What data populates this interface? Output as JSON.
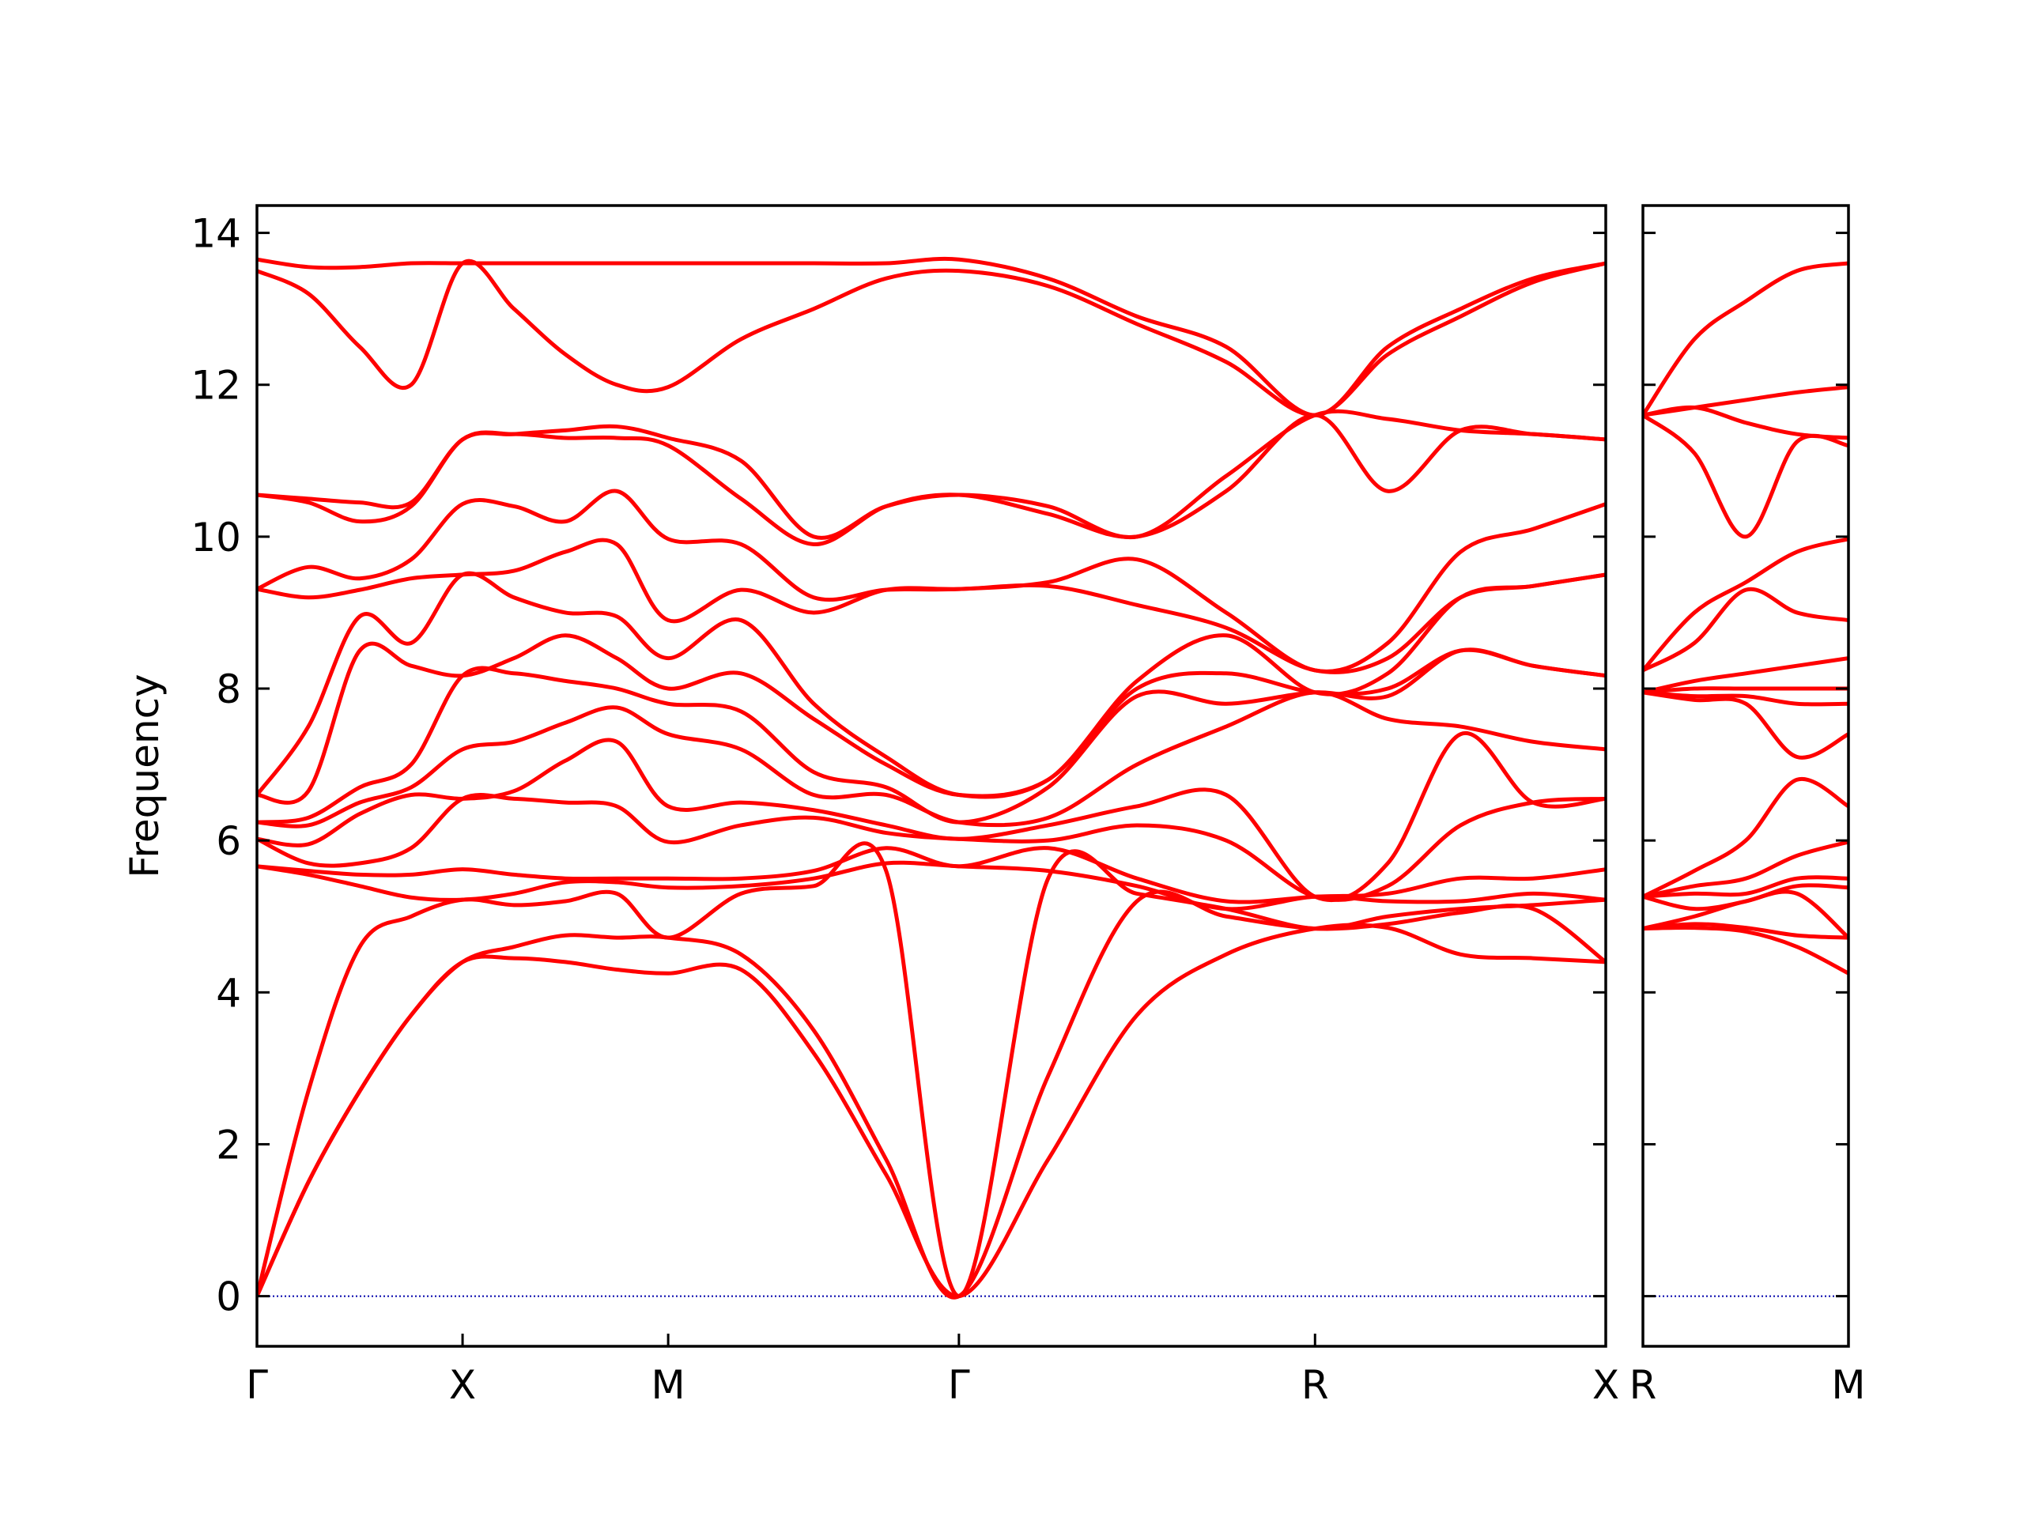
{
  "chart_data": [
    {
      "type": "line",
      "ylabel": "Frequency",
      "color": "#ff0000",
      "xlim": [
        0,
        3.28
      ],
      "ylim": [
        -0.66,
        14.36
      ],
      "xticks": [
        {
          "value": 0,
          "label": "Γ"
        },
        {
          "value": 0.5,
          "label": "X"
        },
        {
          "value": 1.0,
          "label": "M"
        },
        {
          "value": 1.707,
          "label": "Γ"
        },
        {
          "value": 2.573,
          "label": "R"
        },
        {
          "value": 3.28,
          "label": "X"
        }
      ],
      "yticks": [
        0,
        2,
        4,
        6,
        8,
        10,
        12,
        14
      ],
      "ytick_labels": true,
      "zero_line": {
        "y": 0,
        "color": "#0000aa"
      },
      "x": [
        0,
        0.125,
        0.25,
        0.375,
        0.5,
        0.625,
        0.75,
        0.875,
        1.0,
        1.177,
        1.354,
        1.53,
        1.707,
        1.924,
        2.14,
        2.357,
        2.573,
        2.75,
        2.927,
        3.103,
        3.28
      ],
      "series": [
        {
          "values": [
            0,
            1.5,
            2.7,
            3.7,
            4.4,
            4.45,
            4.4,
            4.3,
            4.25,
            4.3,
            3.2,
            1.6,
            0,
            1.8,
            3.7,
            4.5,
            4.84,
            4.85,
            4.5,
            4.45,
            4.4
          ]
        },
        {
          "values": [
            0,
            1.5,
            2.7,
            3.7,
            4.4,
            4.6,
            4.75,
            4.72,
            4.72,
            4.5,
            3.5,
            1.8,
            0,
            2.9,
            5.2,
            5.0,
            4.84,
            4.9,
            5.05,
            5.1,
            4.4
          ]
        },
        {
          "values": [
            0,
            2.7,
            4.6,
            5.0,
            5.22,
            5.15,
            5.2,
            5.3,
            4.72,
            5.3,
            5.4,
            5.6,
            0,
            5.5,
            5.3,
            5.1,
            4.84,
            5.0,
            5.1,
            5.15,
            5.22
          ]
        },
        {
          "values": [
            5.66,
            5.55,
            5.4,
            5.25,
            5.22,
            5.3,
            5.45,
            5.45,
            5.38,
            5.4,
            5.5,
            5.7,
            5.66,
            5.6,
            5.4,
            5.1,
            5.26,
            5.2,
            5.2,
            5.3,
            5.22
          ]
        },
        {
          "values": [
            5.66,
            5.6,
            5.55,
            5.55,
            5.62,
            5.55,
            5.5,
            5.5,
            5.5,
            5.5,
            5.6,
            5.9,
            5.66,
            5.9,
            5.5,
            5.2,
            5.26,
            5.3,
            5.5,
            5.5,
            5.62
          ]
        },
        {
          "values": [
            6.02,
            5.7,
            5.7,
            5.9,
            6.55,
            6.55,
            6.5,
            6.45,
            5.98,
            6.2,
            6.3,
            6.1,
            6.02,
            6.0,
            6.2,
            6.0,
            5.26,
            5.4,
            6.2,
            6.5,
            6.55
          ]
        },
        {
          "values": [
            6.02,
            5.95,
            6.35,
            6.6,
            6.55,
            6.65,
            7.05,
            7.3,
            6.45,
            6.5,
            6.4,
            6.2,
            6.02,
            6.2,
            6.45,
            6.6,
            5.26,
            5.7,
            7.4,
            6.5,
            6.55
          ]
        },
        {
          "values": [
            6.24,
            6.2,
            6.5,
            6.7,
            7.2,
            7.3,
            7.55,
            7.75,
            7.4,
            7.2,
            6.6,
            6.6,
            6.24,
            6.3,
            7.0,
            7.5,
            7.95,
            7.6,
            7.5,
            7.3,
            7.2
          ]
        },
        {
          "values": [
            6.24,
            6.3,
            6.7,
            7.0,
            8.17,
            8.2,
            8.1,
            8.0,
            7.8,
            7.7,
            6.9,
            6.7,
            6.24,
            6.7,
            7.9,
            7.8,
            7.95,
            7.9,
            8.5,
            8.3,
            8.17
          ]
        },
        {
          "values": [
            6.6,
            6.65,
            8.5,
            8.3,
            8.17,
            8.4,
            8.7,
            8.4,
            8.0,
            8.2,
            7.6,
            7.0,
            6.6,
            6.8,
            8.0,
            8.2,
            7.95,
            8.0,
            8.5,
            8.3,
            8.17
          ]
        },
        {
          "values": [
            6.6,
            7.5,
            8.95,
            8.6,
            9.5,
            9.2,
            9.0,
            8.95,
            8.4,
            8.9,
            7.8,
            7.1,
            6.6,
            6.8,
            8.1,
            8.7,
            7.95,
            8.2,
            9.2,
            9.35,
            9.5
          ]
        },
        {
          "values": [
            9.31,
            9.2,
            9.3,
            9.45,
            9.5,
            9.55,
            9.8,
            9.9,
            8.9,
            9.3,
            9.0,
            9.3,
            9.31,
            9.35,
            9.1,
            8.8,
            8.24,
            8.4,
            9.2,
            9.35,
            9.5
          ]
        },
        {
          "values": [
            9.31,
            9.6,
            9.45,
            9.7,
            10.43,
            10.4,
            10.2,
            10.6,
            9.97,
            9.9,
            9.2,
            9.3,
            9.31,
            9.4,
            9.7,
            9.0,
            8.24,
            8.6,
            9.8,
            10.1,
            10.43
          ]
        },
        {
          "values": [
            10.55,
            10.45,
            10.2,
            10.4,
            11.28,
            11.35,
            11.3,
            11.3,
            11.2,
            10.5,
            9.9,
            10.4,
            10.55,
            10.3,
            10.0,
            10.6,
            11.6,
            10.6,
            11.4,
            11.35,
            11.28
          ]
        },
        {
          "values": [
            10.55,
            10.5,
            10.45,
            10.45,
            11.28,
            11.35,
            11.4,
            11.45,
            11.3,
            11.0,
            10.0,
            10.4,
            10.55,
            10.4,
            10.0,
            10.8,
            11.6,
            11.55,
            11.4,
            11.35,
            11.28
          ]
        },
        {
          "values": [
            13.5,
            13.2,
            12.5,
            12.0,
            13.6,
            13.0,
            12.4,
            12.0,
            11.97,
            12.6,
            13.0,
            13.4,
            13.5,
            13.3,
            12.8,
            12.3,
            11.6,
            12.4,
            12.9,
            13.35,
            13.6
          ]
        },
        {
          "values": [
            13.65,
            13.55,
            13.55,
            13.6,
            13.6,
            13.6,
            13.6,
            13.6,
            13.6,
            13.6,
            13.6,
            13.6,
            13.65,
            13.4,
            12.9,
            12.5,
            11.6,
            12.5,
            13.0,
            13.4,
            13.6
          ]
        }
      ]
    },
    {
      "type": "line",
      "color": "#ff0000",
      "xlim": [
        3.28,
        3.987
      ],
      "ylim": [
        -0.66,
        14.36
      ],
      "xticks": [
        {
          "value": 3.28,
          "label": "R"
        },
        {
          "value": 3.987,
          "label": "M"
        }
      ],
      "yticks": [
        0,
        2,
        4,
        6,
        8,
        10,
        12,
        14
      ],
      "ytick_labels": false,
      "zero_line": {
        "y": 0,
        "color": "#0000aa"
      },
      "x": [
        3.28,
        3.457,
        3.634,
        3.81,
        3.987
      ],
      "series": [
        {
          "values": [
            4.84,
            4.85,
            4.8,
            4.6,
            4.25
          ]
        },
        {
          "values": [
            4.84,
            4.9,
            4.85,
            4.75,
            4.72
          ]
        },
        {
          "values": [
            4.84,
            5.0,
            5.2,
            5.3,
            4.72
          ]
        },
        {
          "values": [
            5.26,
            5.1,
            5.2,
            5.4,
            5.38
          ]
        },
        {
          "values": [
            5.26,
            5.3,
            5.3,
            5.5,
            5.5
          ]
        },
        {
          "values": [
            5.26,
            5.4,
            5.5,
            5.8,
            5.98
          ]
        },
        {
          "values": [
            5.26,
            5.6,
            6.0,
            6.8,
            6.45
          ]
        },
        {
          "values": [
            7.95,
            7.85,
            7.8,
            7.1,
            7.4
          ]
        },
        {
          "values": [
            7.95,
            7.9,
            7.9,
            7.8,
            7.8
          ]
        },
        {
          "values": [
            7.95,
            8.0,
            8.0,
            8.0,
            8.0
          ]
        },
        {
          "values": [
            7.95,
            8.1,
            8.2,
            8.3,
            8.4
          ]
        },
        {
          "values": [
            8.24,
            8.6,
            9.3,
            9.0,
            8.9
          ]
        },
        {
          "values": [
            8.24,
            9.0,
            9.4,
            9.8,
            9.97
          ]
        },
        {
          "values": [
            11.6,
            11.1,
            10.0,
            11.25,
            11.2
          ]
        },
        {
          "values": [
            11.6,
            11.7,
            11.5,
            11.35,
            11.3
          ]
        },
        {
          "values": [
            11.6,
            11.7,
            11.8,
            11.9,
            11.97
          ]
        },
        {
          "values": [
            11.6,
            12.6,
            13.1,
            13.5,
            13.6
          ]
        }
      ]
    }
  ]
}
